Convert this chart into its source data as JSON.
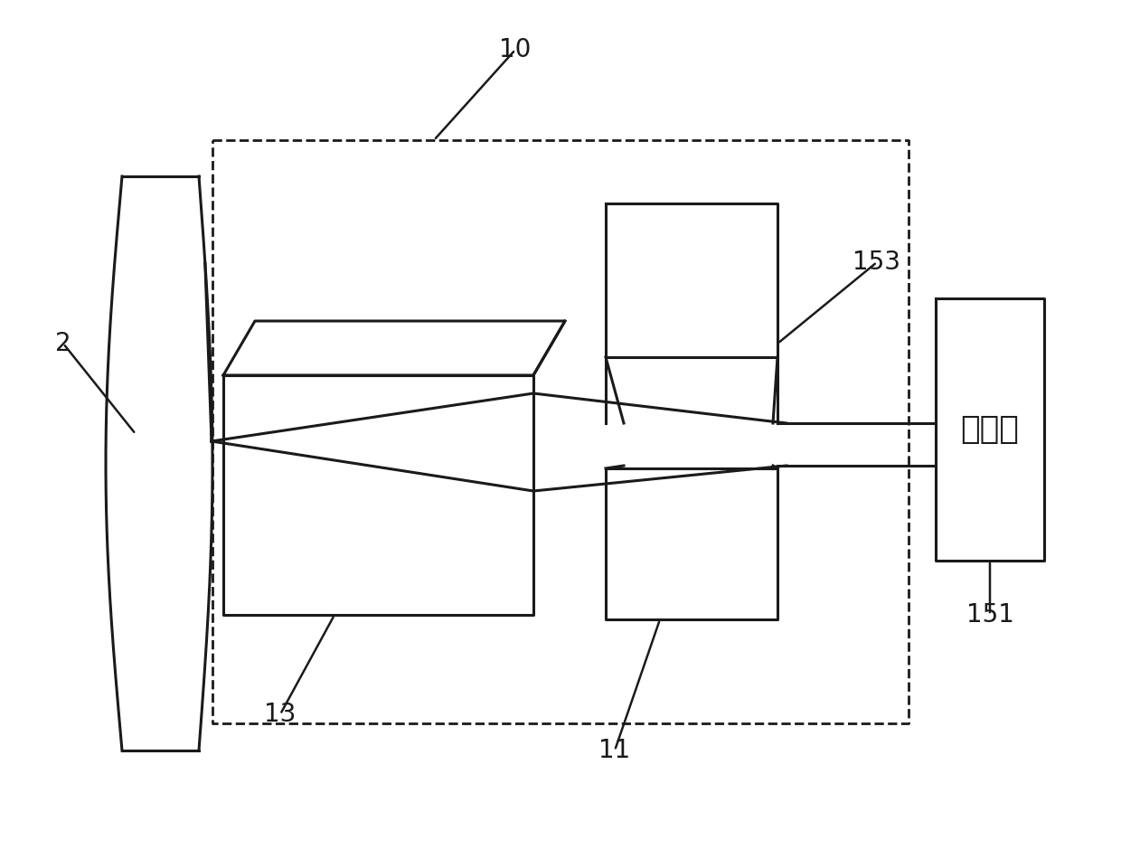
{
  "bg": "#ffffff",
  "lc": "#1a1a1a",
  "lw": 2.2,
  "dlw": 2.0,
  "label_fs": 20,
  "ch_fs": 26,
  "figw": 12.4,
  "figh": 9.5,
  "dpi": 100,
  "laser_text": "激光源"
}
